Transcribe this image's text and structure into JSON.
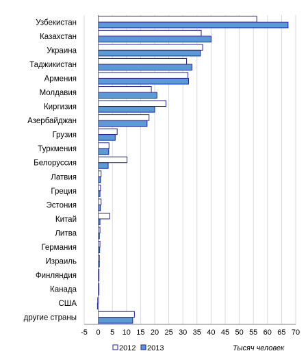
{
  "chart_data": {
    "type": "bar",
    "orientation": "horizontal",
    "categories": [
      "Узбекистан",
      "Казахстан",
      "Украина",
      "Таджикистан",
      "Армения",
      "Молдавия",
      "Киргизия",
      "Азербайджан",
      "Грузия",
      "Туркмения",
      "Белоруссия",
      "Латвия",
      "Греция",
      "Эстония",
      "Китай",
      "Литва",
      "Германия",
      "Израиль",
      "Финляндия",
      "Канада",
      "США",
      "другие страны"
    ],
    "series": [
      {
        "name": "2012",
        "color": "#ffffff",
        "values": [
          56.2,
          36.5,
          37.0,
          31.3,
          31.8,
          18.8,
          24.0,
          18.0,
          6.7,
          3.8,
          10.2,
          1.0,
          0.8,
          1.0,
          4.0,
          0.6,
          0.6,
          0.4,
          0.2,
          0.1,
          -0.2,
          12.8
        ]
      },
      {
        "name": "2013",
        "color": "#5b9bd5",
        "values": [
          67.3,
          40.0,
          36.2,
          33.2,
          32.0,
          20.8,
          20.0,
          17.3,
          6.0,
          3.7,
          3.5,
          0.8,
          0.6,
          0.7,
          0.6,
          0.4,
          0.5,
          0.4,
          0.2,
          0.1,
          -0.3,
          12.2
        ]
      }
    ],
    "xlim": [
      -5,
      70
    ],
    "xticks": [
      -5,
      0,
      5,
      10,
      15,
      20,
      25,
      30,
      35,
      40,
      45,
      50,
      55,
      60,
      65,
      70
    ],
    "xlabel": "Тысяч человек",
    "grid": true,
    "legend_position": "bottom"
  }
}
